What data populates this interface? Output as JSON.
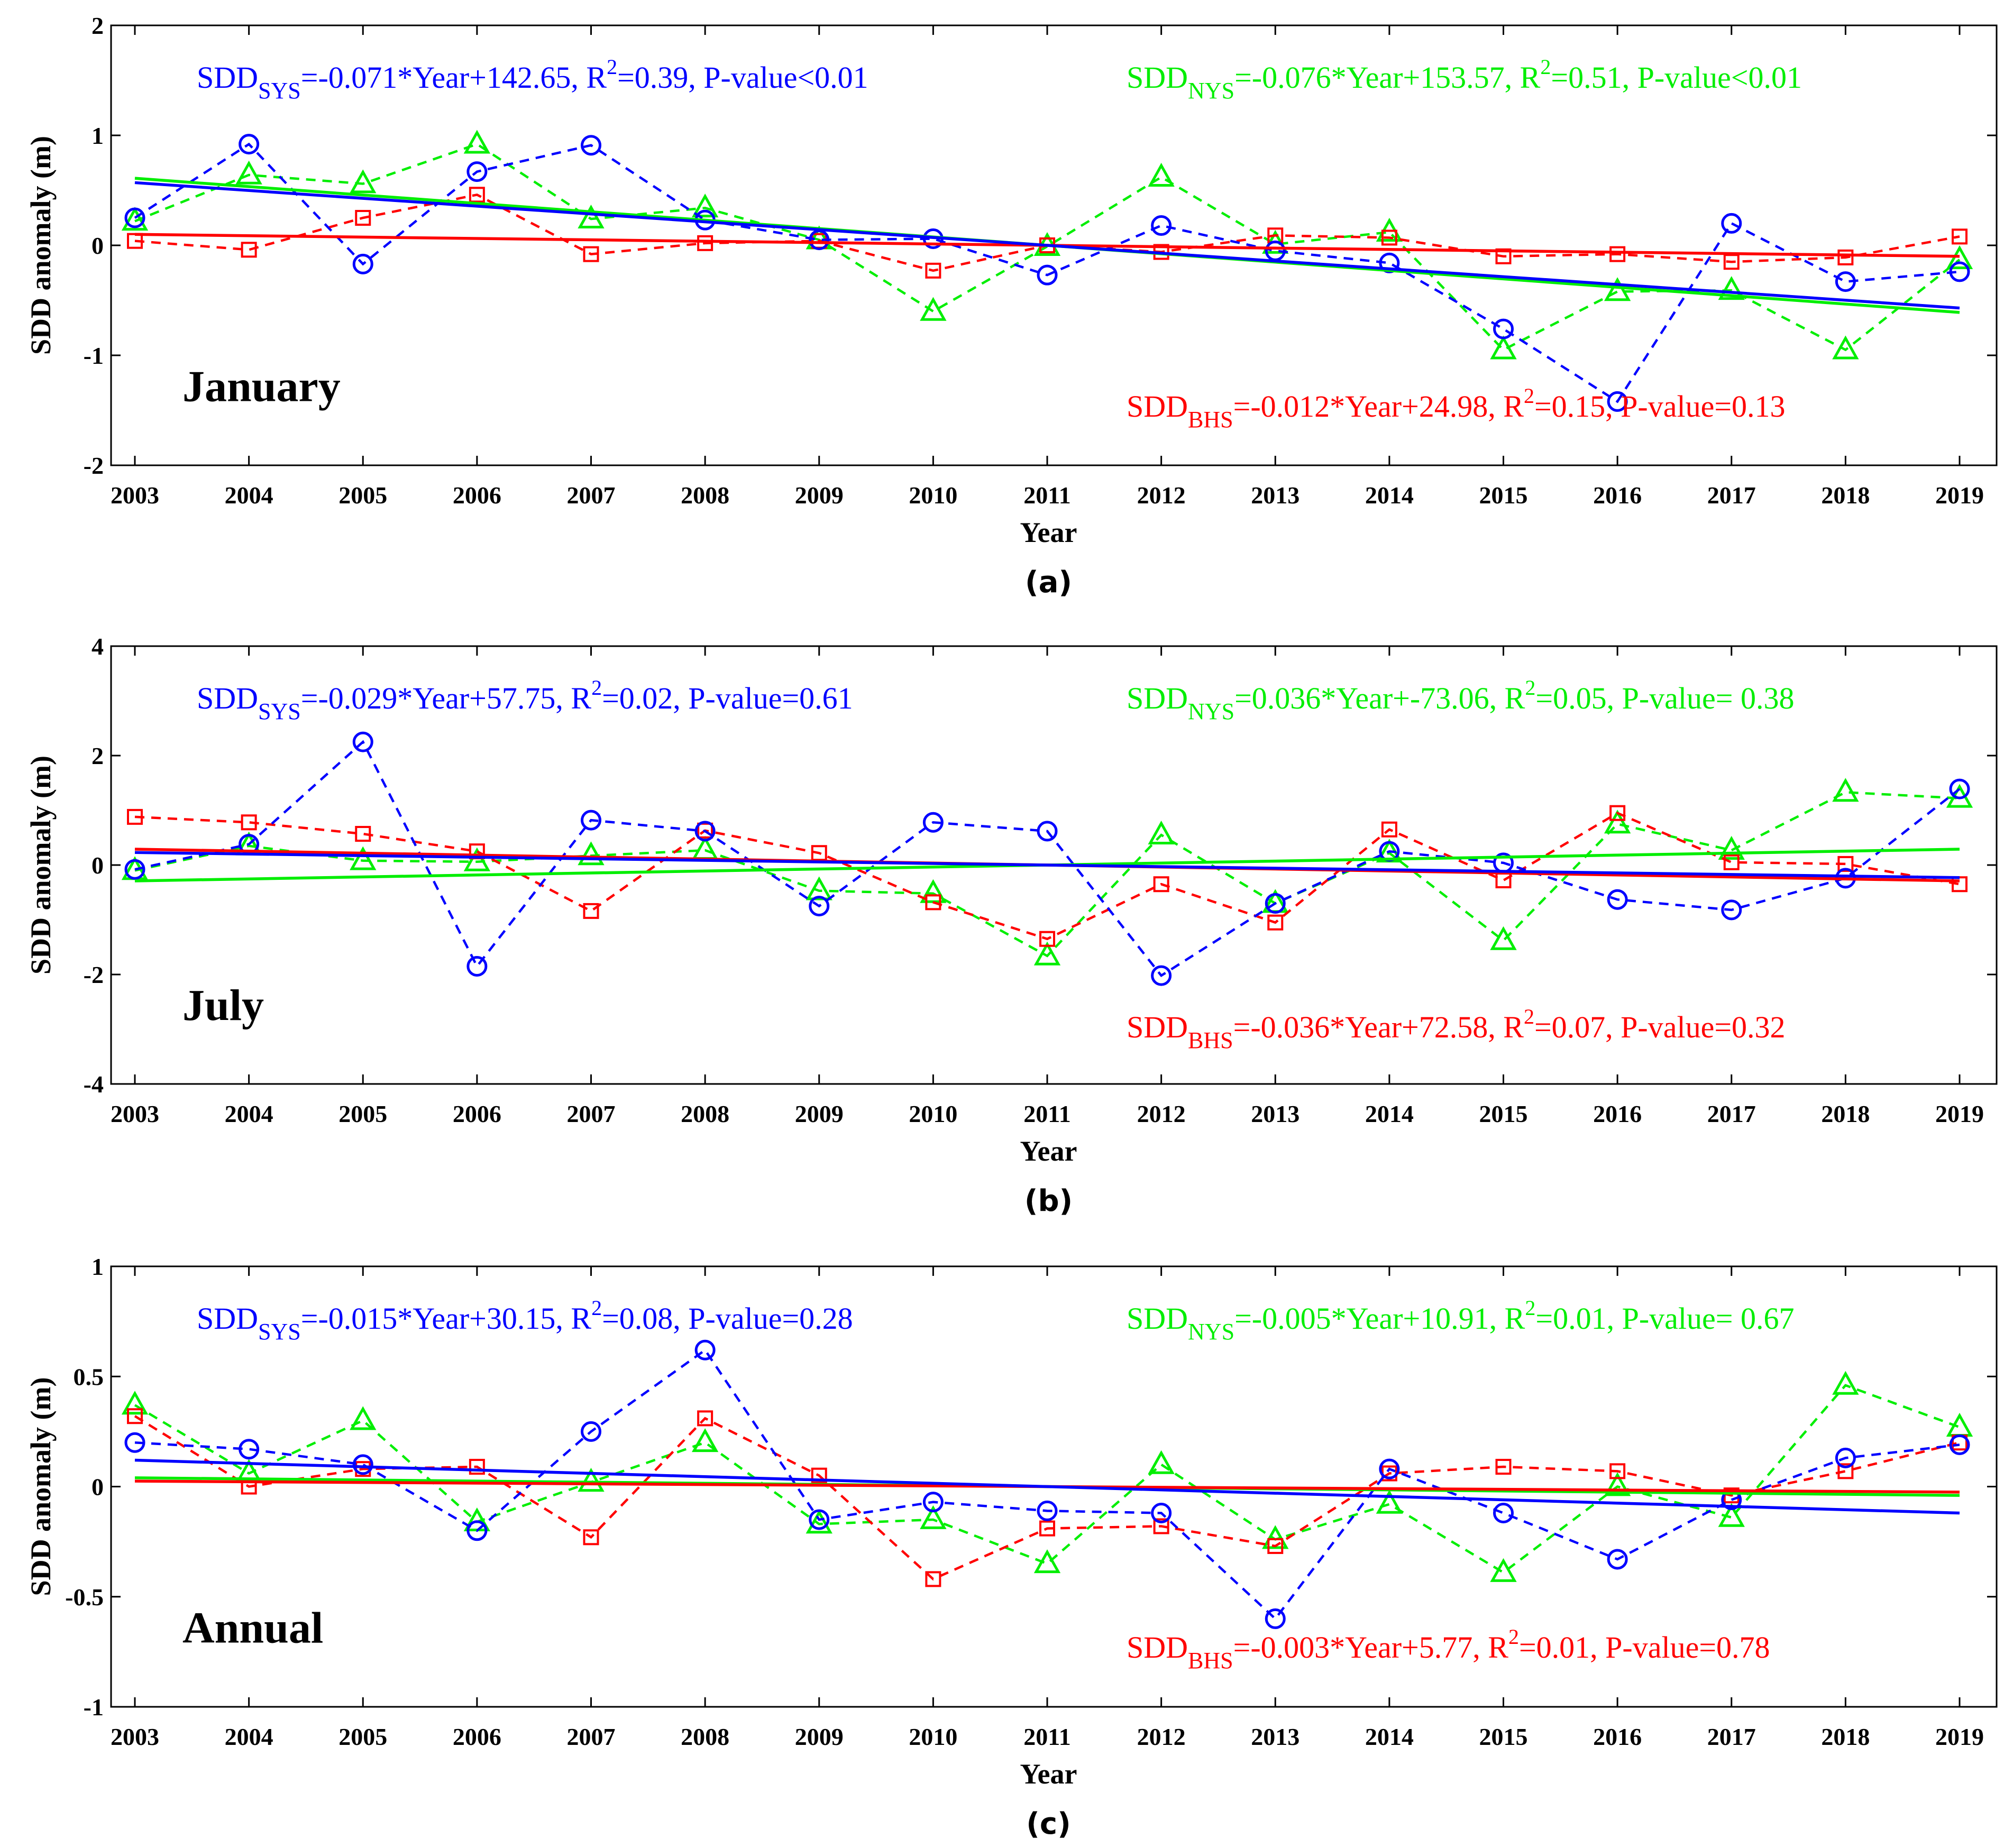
{
  "chart_data": [
    {
      "type": "line",
      "panel": "(a)",
      "title": "January",
      "xlabel": "Year",
      "ylabel": "SDD anomaly (m)",
      "ylim": [
        -2,
        2
      ],
      "yticks": [
        -2,
        -1,
        0,
        1,
        2
      ],
      "categories": [
        2003,
        2004,
        2005,
        2006,
        2007,
        2008,
        2009,
        2010,
        2011,
        2012,
        2013,
        2014,
        2015,
        2016,
        2017,
        2018,
        2019
      ],
      "series": [
        {
          "name": "SYS",
          "color": "#0000ff",
          "marker": "circle",
          "values": [
            0.25,
            0.92,
            -0.17,
            0.67,
            0.91,
            0.23,
            0.05,
            0.06,
            -0.27,
            0.18,
            -0.05,
            -0.16,
            -0.76,
            -1.42,
            0.2,
            -0.33,
            -0.24
          ],
          "trend": [
            0.57,
            -0.57
          ],
          "equation": {
            "prefix": "SDD",
            "sub": "SYS",
            "text1": "=-0.071*Year+142.65, R",
            "sup": "2",
            "text2": "=0.39, P-value<0.01"
          }
        },
        {
          "name": "NYS",
          "color": "#00ee00",
          "marker": "triangle",
          "values": [
            0.22,
            0.64,
            0.56,
            0.92,
            0.24,
            0.34,
            0.05,
            -0.6,
            -0.01,
            0.62,
            0.01,
            0.12,
            -0.95,
            -0.42,
            -0.41,
            -0.95,
            -0.13
          ],
          "trend": [
            0.61,
            -0.61
          ],
          "equation": {
            "prefix": "SDD",
            "sub": "NYS",
            "text1": "=-0.076*Year+153.57, R",
            "sup": "2",
            "text2": "=0.51, P-value<0.01"
          }
        },
        {
          "name": "BHS",
          "color": "#ff0000",
          "marker": "square",
          "values": [
            0.04,
            -0.04,
            0.25,
            0.46,
            -0.08,
            0.02,
            0.04,
            -0.23,
            0.0,
            -0.06,
            0.09,
            0.07,
            -0.1,
            -0.08,
            -0.15,
            -0.11,
            0.08
          ],
          "trend": [
            0.1,
            -0.1
          ],
          "equation": {
            "prefix": "SDD",
            "sub": "BHS",
            "text1": "=-0.012*Year+24.98, R",
            "sup": "2",
            "text2": "=0.15, P-value=0.13"
          }
        }
      ]
    },
    {
      "type": "line",
      "panel": "(b)",
      "title": "July",
      "xlabel": "Year",
      "ylabel": "SDD anomaly (m)",
      "ylim": [
        -4,
        4
      ],
      "yticks": [
        -4,
        -2,
        0,
        2,
        4
      ],
      "categories": [
        2003,
        2004,
        2005,
        2006,
        2007,
        2008,
        2009,
        2010,
        2011,
        2012,
        2013,
        2014,
        2015,
        2016,
        2017,
        2018,
        2019
      ],
      "series": [
        {
          "name": "SYS",
          "color": "#0000ff",
          "marker": "circle",
          "values": [
            -0.08,
            0.38,
            2.25,
            -1.85,
            0.82,
            0.62,
            -0.75,
            0.78,
            0.62,
            -2.02,
            -0.7,
            0.25,
            0.04,
            -0.63,
            -0.82,
            -0.24,
            1.39
          ],
          "trend": [
            0.23,
            -0.23
          ],
          "equation": {
            "prefix": "SDD",
            "sub": "SYS",
            "text1": "=-0.029*Year+57.75, R",
            "sup": "2",
            "text2": "=0.02, P-value=0.61"
          }
        },
        {
          "name": "NYS",
          "color": "#00ee00",
          "marker": "triangle",
          "values": [
            -0.1,
            0.35,
            0.08,
            0.06,
            0.17,
            0.27,
            -0.47,
            -0.52,
            -1.66,
            0.55,
            -0.7,
            0.22,
            -1.38,
            0.75,
            0.27,
            1.33,
            1.22
          ],
          "trend": [
            -0.29,
            0.29
          ],
          "equation": {
            "prefix": "SDD",
            "sub": "NYS",
            "text1": "=0.036*Year+-73.06, R",
            "sup": "2",
            "text2": "=0.05, P-value= 0.38"
          }
        },
        {
          "name": "BHS",
          "color": "#ff0000",
          "marker": "square",
          "values": [
            0.88,
            0.78,
            0.57,
            0.25,
            -0.84,
            0.63,
            0.22,
            -0.68,
            -1.35,
            -0.35,
            -1.05,
            0.65,
            -0.28,
            0.95,
            0.05,
            0.02,
            -0.35
          ],
          "trend": [
            0.29,
            -0.29
          ],
          "equation": {
            "prefix": "SDD",
            "sub": "BHS",
            "text1": "=-0.036*Year+72.58, R",
            "sup": "2",
            "text2": "=0.07, P-value=0.32"
          }
        }
      ]
    },
    {
      "type": "line",
      "panel": "(c)",
      "title": "Annual",
      "xlabel": "Year",
      "ylabel": "SDD anomaly (m)",
      "ylim": [
        -1,
        1
      ],
      "yticks": [
        -1,
        -0.5,
        0,
        0.5,
        1
      ],
      "categories": [
        2003,
        2004,
        2005,
        2006,
        2007,
        2008,
        2009,
        2010,
        2011,
        2012,
        2013,
        2014,
        2015,
        2016,
        2017,
        2018,
        2019
      ],
      "series": [
        {
          "name": "SYS",
          "color": "#0000ff",
          "marker": "circle",
          "values": [
            0.2,
            0.17,
            0.1,
            -0.2,
            0.25,
            0.62,
            -0.15,
            -0.07,
            -0.11,
            -0.12,
            -0.6,
            0.08,
            -0.12,
            -0.33,
            -0.06,
            0.13,
            0.19
          ],
          "trend": [
            0.12,
            -0.12
          ],
          "equation": {
            "prefix": "SDD",
            "sub": "SYS",
            "text1": "=-0.015*Year+30.15, R",
            "sup": "2",
            "text2": "=0.08, P-value=0.28"
          }
        },
        {
          "name": "NYS",
          "color": "#00ee00",
          "marker": "triangle",
          "values": [
            0.37,
            0.06,
            0.3,
            -0.16,
            0.02,
            0.2,
            -0.17,
            -0.15,
            -0.35,
            0.1,
            -0.24,
            -0.08,
            -0.39,
            0.0,
            -0.14,
            0.46,
            0.27
          ],
          "trend": [
            0.04,
            -0.04
          ],
          "equation": {
            "prefix": "SDD",
            "sub": "NYS",
            "text1": "=-0.005*Year+10.91, R",
            "sup": "2",
            "text2": "=0.01, P-value= 0.67"
          }
        },
        {
          "name": "BHS",
          "color": "#ff0000",
          "marker": "square",
          "values": [
            0.32,
            0.0,
            0.08,
            0.09,
            -0.23,
            0.31,
            0.05,
            -0.42,
            -0.19,
            -0.18,
            -0.27,
            0.06,
            0.09,
            0.07,
            -0.04,
            0.07,
            0.2
          ],
          "trend": [
            0.025,
            -0.025
          ],
          "equation": {
            "prefix": "SDD",
            "sub": "BHS",
            "text1": "=-0.003*Year+5.77, R",
            "sup": "2",
            "text2": "=0.01, P-value=0.78"
          }
        }
      ]
    }
  ]
}
